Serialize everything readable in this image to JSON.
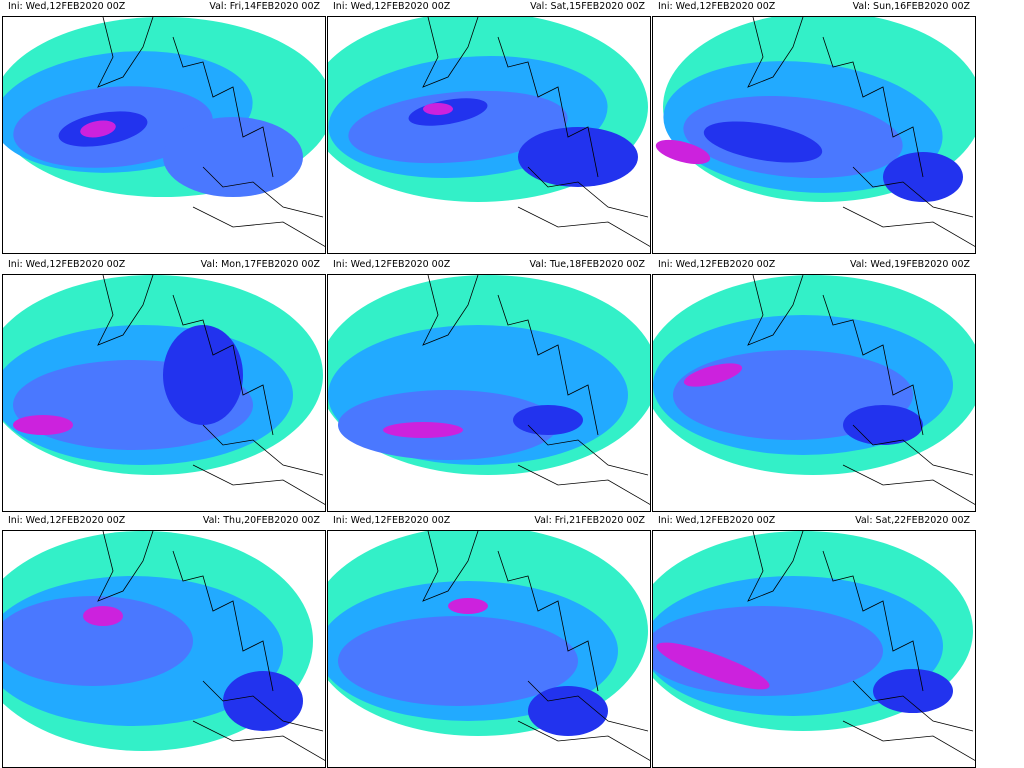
{
  "panels": [
    {
      "init": "Ini: Wed,12FEB2020 00Z",
      "valid": "Val: Fri,14FEB2020 00Z"
    },
    {
      "init": "Ini: Wed,12FEB2020 00Z",
      "valid": "Val: Sat,15FEB2020 00Z"
    },
    {
      "init": "Ini: Wed,12FEB2020 00Z",
      "valid": "Val: Sun,16FEB2020 00Z"
    },
    {
      "init": "Ini: Wed,12FEB2020 00Z",
      "valid": "Val: Mon,17FEB2020 00Z"
    },
    {
      "init": "Ini: Wed,12FEB2020 00Z",
      "valid": "Val: Tue,18FEB2020 00Z"
    },
    {
      "init": "Ini: Wed,12FEB2020 00Z",
      "valid": "Val: Wed,19FEB2020 00Z"
    },
    {
      "init": "Ini: Wed,12FEB2020 00Z",
      "valid": "Val: Thu,20FEB2020 00Z"
    },
    {
      "init": "Ini: Wed,12FEB2020 00Z",
      "valid": "Val: Fri,21FEB2020 00Z"
    },
    {
      "init": "Ini: Wed,12FEB2020 00Z",
      "valid": "Val: Sat,22FEB2020 00Z"
    }
  ],
  "colors": {
    "low": "#33f0c8",
    "lowmid": "#22aaff",
    "mid": "#4a78ff",
    "high": "#2233ee",
    "peak": "#cc22dd",
    "land_line": "#000000"
  }
}
